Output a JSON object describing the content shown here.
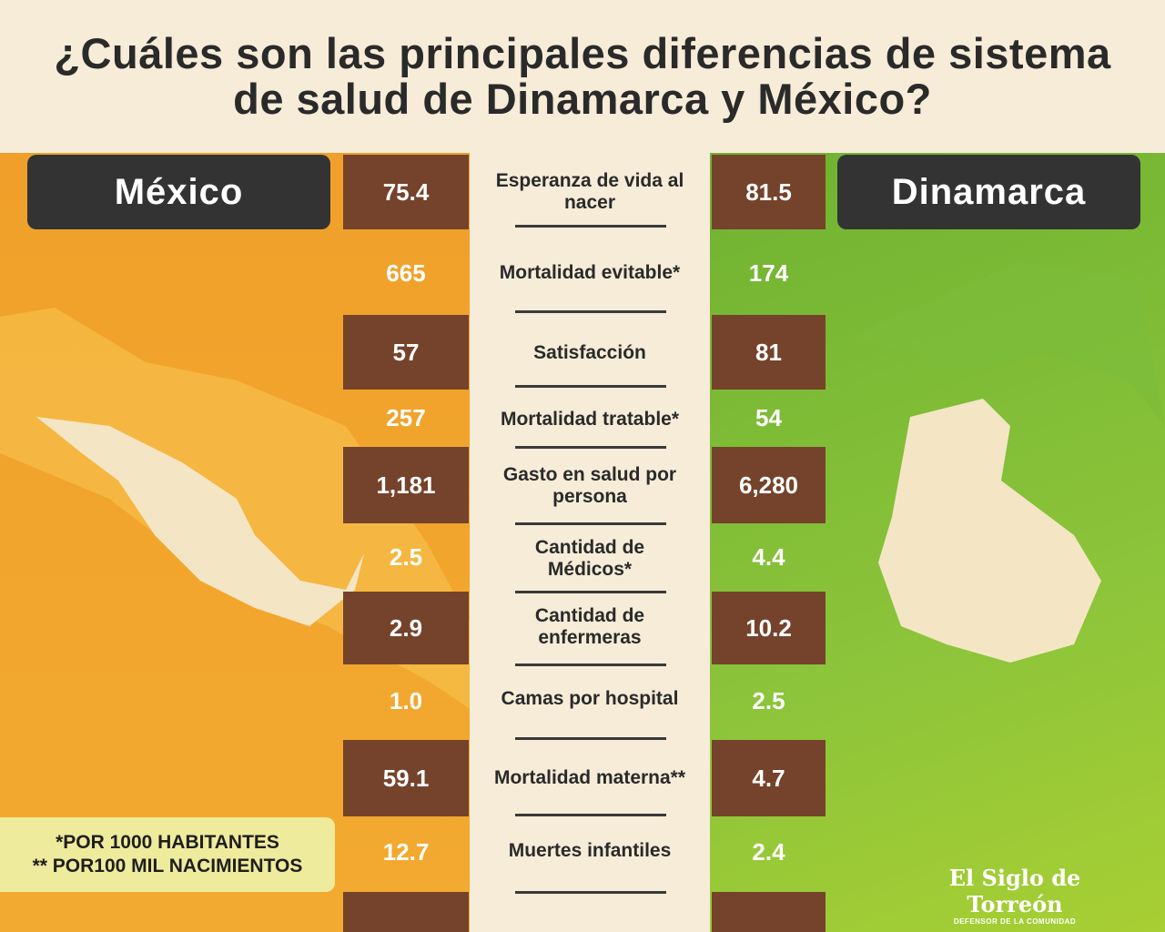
{
  "header": {
    "title": "¿Cuáles son las principales diferencias de sistema de salud de Dinamarca y México?"
  },
  "countries": {
    "left": "México",
    "right": "Dinamarca"
  },
  "rows": [
    {
      "label": "Esperanza de vida al nacer",
      "mexico": "75.4",
      "dinamarca": "81.5"
    },
    {
      "label": "Mortalidad evitable*",
      "mexico": "665",
      "dinamarca": "174"
    },
    {
      "label": "Satisfacción",
      "mexico": "57",
      "dinamarca": "81"
    },
    {
      "label": "Mortalidad tratable*",
      "mexico": "257",
      "dinamarca": "54"
    },
    {
      "label": "Gasto en salud por persona",
      "mexico": "1,181",
      "dinamarca": "6,280"
    },
    {
      "label": "Cantidad de Médicos*",
      "mexico": "2.5",
      "dinamarca": "4.4"
    },
    {
      "label": "Cantidad de enfermeras",
      "mexico": "2.9",
      "dinamarca": "10.2"
    },
    {
      "label": "Camas por hospital",
      "mexico": "1.0",
      "dinamarca": "2.5"
    },
    {
      "label": "Mortalidad materna**",
      "mexico": "59.1",
      "dinamarca": "4.7"
    },
    {
      "label": "Muertes infantiles",
      "mexico": "12.7",
      "dinamarca": "2.4"
    }
  ],
  "footnotes": [
    "*POR 1000 HABITANTES",
    "** POR100 MIL NACIMIENTOS"
  ],
  "logo": {
    "name": "El Siglo de Torreón",
    "tagline": "DEFENSOR DE LA COMUNIDAD"
  }
}
